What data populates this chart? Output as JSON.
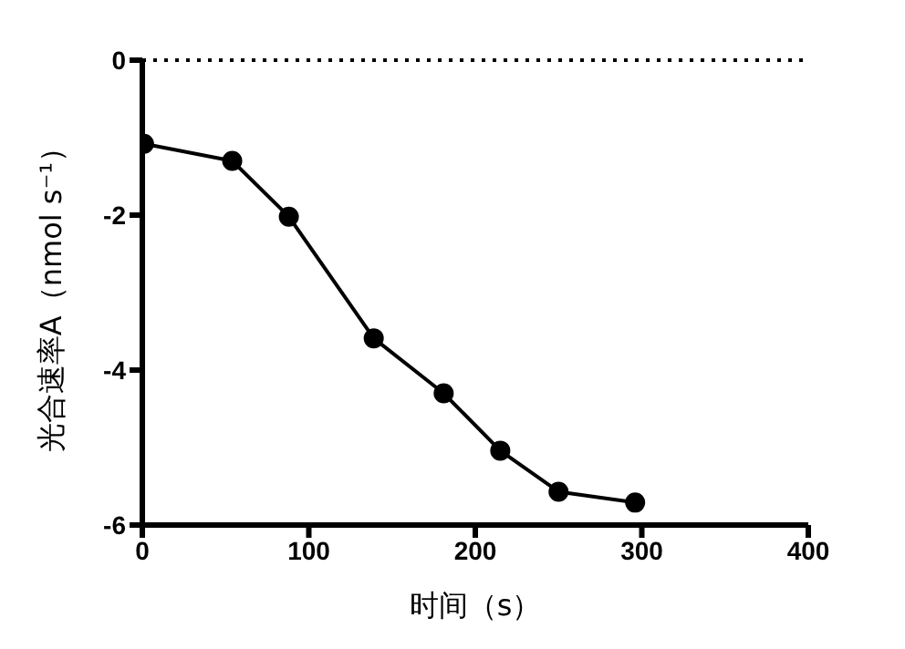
{
  "chart_data": {
    "type": "line",
    "xlabel": "时间（s）",
    "ylabel": "光合速率A（nmol s⁻¹）",
    "x": [
      1,
      54,
      88,
      139,
      181,
      215,
      250,
      296
    ],
    "series": [
      {
        "color": "#000000",
        "values": [
          -1.08,
          -1.3,
          -2.02,
          -3.59,
          -4.3,
          -5.04,
          -5.57,
          -5.71
        ]
      }
    ],
    "xlim": [
      0,
      400
    ],
    "xticks": [
      0,
      100,
      200,
      300,
      400
    ],
    "ylim": [
      -6,
      0
    ],
    "yticks": [
      -6,
      -4,
      -2,
      0
    ],
    "ref_lines": [
      {
        "axis": "y",
        "value": 0,
        "line_style": "dotted",
        "color": "#000000"
      }
    ],
    "marker": "circle",
    "line_style": "solid",
    "grid": false,
    "legend": false
  }
}
